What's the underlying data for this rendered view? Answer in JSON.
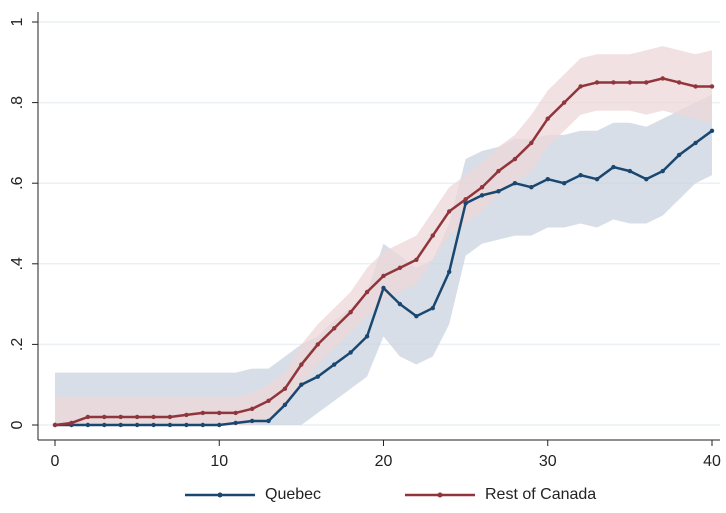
{
  "chart_data": {
    "type": "line",
    "x": [
      0,
      1,
      2,
      3,
      4,
      5,
      6,
      7,
      8,
      9,
      10,
      11,
      12,
      13,
      14,
      15,
      16,
      17,
      18,
      19,
      20,
      21,
      22,
      23,
      24,
      25,
      26,
      27,
      28,
      29,
      30,
      31,
      32,
      33,
      34,
      35,
      36,
      37,
      38,
      39,
      40
    ],
    "series": [
      {
        "name": "Quebec",
        "color": "#1a476f",
        "band_color": "#c9d3df",
        "values": [
          0,
          0,
          0,
          0,
          0,
          0,
          0,
          0,
          0,
          0,
          0,
          0.005,
          0.01,
          0.01,
          0.05,
          0.1,
          0.12,
          0.15,
          0.18,
          0.22,
          0.34,
          0.3,
          0.27,
          0.29,
          0.38,
          0.55,
          0.57,
          0.58,
          0.6,
          0.59,
          0.61,
          0.6,
          0.62,
          0.61,
          0.64,
          0.63,
          0.61,
          0.63,
          0.67,
          0.7,
          0.73
        ],
        "lower": [
          0,
          0,
          0,
          0,
          0,
          0,
          0,
          0,
          0,
          0,
          0,
          0,
          0,
          0,
          0,
          0,
          0.03,
          0.06,
          0.09,
          0.12,
          0.22,
          0.17,
          0.15,
          0.17,
          0.25,
          0.42,
          0.45,
          0.46,
          0.47,
          0.47,
          0.49,
          0.49,
          0.5,
          0.49,
          0.51,
          0.5,
          0.5,
          0.52,
          0.56,
          0.6,
          0.62
        ],
        "upper": [
          0.13,
          0.13,
          0.13,
          0.13,
          0.13,
          0.13,
          0.13,
          0.13,
          0.13,
          0.13,
          0.13,
          0.13,
          0.14,
          0.14,
          0.17,
          0.2,
          0.22,
          0.26,
          0.29,
          0.33,
          0.45,
          0.42,
          0.39,
          0.41,
          0.5,
          0.66,
          0.68,
          0.69,
          0.71,
          0.71,
          0.72,
          0.72,
          0.73,
          0.73,
          0.75,
          0.75,
          0.74,
          0.76,
          0.78,
          0.8,
          0.82
        ]
      },
      {
        "name": "Rest of Canada",
        "color": "#90353b",
        "band_color": "#ecd7d8",
        "values": [
          0,
          0.005,
          0.02,
          0.02,
          0.02,
          0.02,
          0.02,
          0.02,
          0.025,
          0.03,
          0.03,
          0.03,
          0.04,
          0.06,
          0.09,
          0.15,
          0.2,
          0.24,
          0.28,
          0.33,
          0.37,
          0.39,
          0.41,
          0.47,
          0.53,
          0.56,
          0.59,
          0.63,
          0.66,
          0.7,
          0.76,
          0.8,
          0.84,
          0.85,
          0.85,
          0.85,
          0.85,
          0.86,
          0.85,
          0.84,
          0.84
        ],
        "lower": [
          0,
          0,
          0,
          0,
          0,
          0,
          0,
          0,
          0,
          0,
          0,
          0,
          0,
          0.02,
          0.05,
          0.1,
          0.15,
          0.19,
          0.23,
          0.27,
          0.31,
          0.33,
          0.35,
          0.41,
          0.47,
          0.5,
          0.53,
          0.57,
          0.6,
          0.63,
          0.69,
          0.73,
          0.77,
          0.78,
          0.78,
          0.78,
          0.77,
          0.78,
          0.77,
          0.76,
          0.75
        ],
        "upper": [
          0.07,
          0.07,
          0.07,
          0.07,
          0.07,
          0.07,
          0.07,
          0.07,
          0.07,
          0.07,
          0.07,
          0.07,
          0.08,
          0.1,
          0.13,
          0.2,
          0.25,
          0.29,
          0.33,
          0.39,
          0.43,
          0.45,
          0.47,
          0.53,
          0.59,
          0.62,
          0.65,
          0.69,
          0.72,
          0.77,
          0.83,
          0.87,
          0.91,
          0.92,
          0.92,
          0.92,
          0.93,
          0.94,
          0.93,
          0.92,
          0.93
        ]
      }
    ],
    "xlim": [
      0,
      40
    ],
    "xticks": [
      0,
      10,
      20,
      30,
      40
    ],
    "ylim": [
      0,
      1
    ],
    "yticks": [
      0,
      {
        "value": 0.2,
        "label": ".2"
      },
      {
        "value": 0.4,
        "label": ".4"
      },
      {
        "value": 0.6,
        "label": ".6"
      },
      {
        "value": 0.8,
        "label": ".8"
      },
      1
    ],
    "grid": true,
    "legend": "bottom"
  }
}
